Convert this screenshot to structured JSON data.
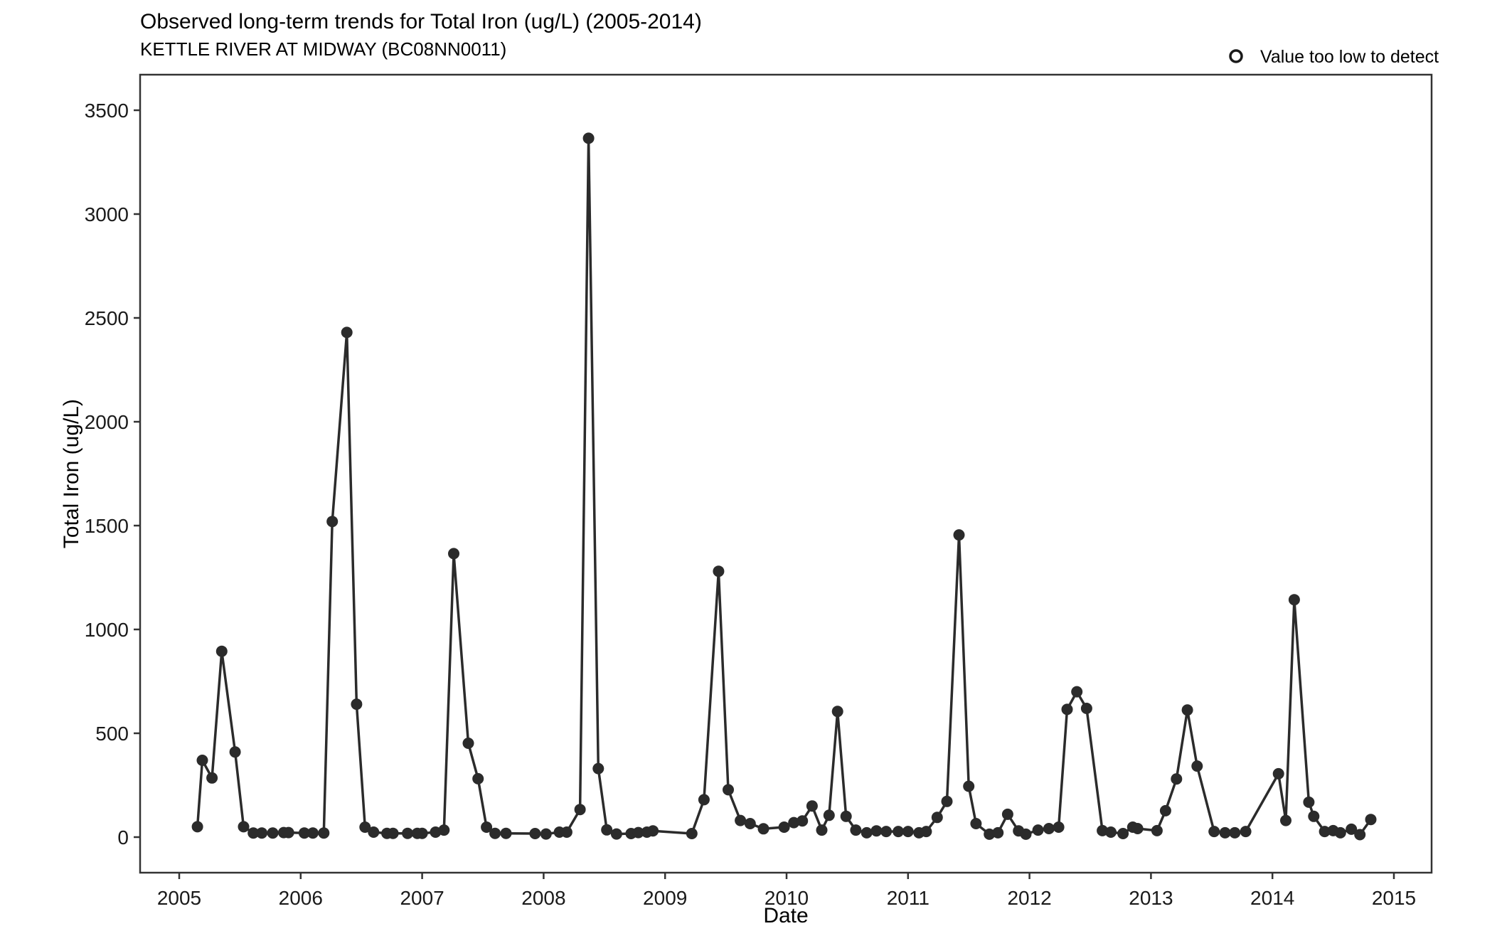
{
  "header": {
    "title": "Observed long-term trends for Total Iron (ug/L) (2005-2014)",
    "subtitle": "KETTLE RIVER AT MIDWAY (BC08NN0011)"
  },
  "legend": {
    "label": "Value too low to detect",
    "marker": "open-circle"
  },
  "axes": {
    "x_label": "Date",
    "y_label": "Total Iron (ug/L)"
  },
  "colors": {
    "series": "#2b2b2b",
    "text": "#000000",
    "axis": "#333333",
    "background": "#ffffff"
  },
  "chart_data": {
    "type": "line",
    "title": "Observed long-term trends for Total Iron (ug/L) (2005-2014)",
    "subtitle": "KETTLE RIVER AT MIDWAY (BC08NN0011)",
    "xlabel": "Date",
    "ylabel": "Total Iron (ug/L)",
    "series_name": "Total Iron (ug/L)",
    "x_ticks": [
      2005,
      2006,
      2007,
      2008,
      2009,
      2010,
      2011,
      2012,
      2013,
      2014,
      2015
    ],
    "y_ticks": [
      0,
      500,
      1000,
      1500,
      2000,
      2500,
      3000,
      3500
    ],
    "xlim": [
      2004.68,
      2015.31
    ],
    "ylim": [
      -170,
      3670
    ],
    "grid": false,
    "legend_position": "top-right",
    "legend_entries": [
      {
        "label": "Value too low to detect",
        "marker": "open-circle"
      }
    ],
    "points": [
      [
        2005.15,
        50
      ],
      [
        2005.19,
        370
      ],
      [
        2005.27,
        285
      ],
      [
        2005.35,
        895
      ],
      [
        2005.46,
        410
      ],
      [
        2005.53,
        50
      ],
      [
        2005.61,
        20
      ],
      [
        2005.68,
        20
      ],
      [
        2005.77,
        20
      ],
      [
        2005.86,
        22
      ],
      [
        2005.9,
        22
      ],
      [
        2006.03,
        20
      ],
      [
        2006.1,
        20
      ],
      [
        2006.19,
        20
      ],
      [
        2006.26,
        1520
      ],
      [
        2006.38,
        2430
      ],
      [
        2006.46,
        640
      ],
      [
        2006.53,
        48
      ],
      [
        2006.6,
        24
      ],
      [
        2006.71,
        18
      ],
      [
        2006.76,
        18
      ],
      [
        2006.88,
        18
      ],
      [
        2006.96,
        18
      ],
      [
        2007.0,
        18
      ],
      [
        2007.11,
        24
      ],
      [
        2007.18,
        34
      ],
      [
        2007.26,
        1365
      ],
      [
        2007.38,
        452
      ],
      [
        2007.46,
        281
      ],
      [
        2007.53,
        48
      ],
      [
        2007.6,
        18
      ],
      [
        2007.69,
        18
      ],
      [
        2007.93,
        17
      ],
      [
        2008.02,
        15
      ],
      [
        2008.13,
        24
      ],
      [
        2008.19,
        24
      ],
      [
        2008.3,
        133
      ],
      [
        2008.37,
        3365
      ],
      [
        2008.45,
        330
      ],
      [
        2008.52,
        35
      ],
      [
        2008.6,
        15
      ],
      [
        2008.72,
        17
      ],
      [
        2008.78,
        22
      ],
      [
        2008.85,
        24
      ],
      [
        2008.9,
        30
      ],
      [
        2009.22,
        17
      ],
      [
        2009.32,
        180
      ],
      [
        2009.44,
        1280
      ],
      [
        2009.52,
        228
      ],
      [
        2009.62,
        80
      ],
      [
        2009.7,
        65
      ],
      [
        2009.81,
        40
      ],
      [
        2009.98,
        48
      ],
      [
        2010.06,
        70
      ],
      [
        2010.13,
        78
      ],
      [
        2010.21,
        150
      ],
      [
        2010.29,
        34
      ],
      [
        2010.35,
        105
      ],
      [
        2010.42,
        605
      ],
      [
        2010.49,
        100
      ],
      [
        2010.57,
        34
      ],
      [
        2010.66,
        21
      ],
      [
        2010.74,
        30
      ],
      [
        2010.82,
        27
      ],
      [
        2010.92,
        27
      ],
      [
        2011.0,
        27
      ],
      [
        2011.09,
        21
      ],
      [
        2011.15,
        27
      ],
      [
        2011.24,
        95
      ],
      [
        2011.32,
        172
      ],
      [
        2011.42,
        1455
      ],
      [
        2011.5,
        245
      ],
      [
        2011.56,
        65
      ],
      [
        2011.67,
        14
      ],
      [
        2011.74,
        21
      ],
      [
        2011.82,
        110
      ],
      [
        2011.91,
        30
      ],
      [
        2011.97,
        14
      ],
      [
        2012.07,
        34
      ],
      [
        2012.16,
        41
      ],
      [
        2012.24,
        48
      ],
      [
        2012.31,
        615
      ],
      [
        2012.39,
        700
      ],
      [
        2012.47,
        620
      ],
      [
        2012.6,
        31
      ],
      [
        2012.67,
        24
      ],
      [
        2012.77,
        17
      ],
      [
        2012.85,
        48
      ],
      [
        2012.89,
        41
      ],
      [
        2013.05,
        31
      ],
      [
        2013.12,
        127
      ],
      [
        2013.21,
        280
      ],
      [
        2013.3,
        612
      ],
      [
        2013.38,
        342
      ],
      [
        2013.52,
        27
      ],
      [
        2013.61,
        21
      ],
      [
        2013.69,
        21
      ],
      [
        2013.78,
        27
      ],
      [
        2014.05,
        305
      ],
      [
        2014.11,
        80
      ],
      [
        2014.18,
        1143
      ],
      [
        2014.3,
        168
      ],
      [
        2014.34,
        100
      ],
      [
        2014.43,
        27
      ],
      [
        2014.5,
        31
      ],
      [
        2014.56,
        21
      ],
      [
        2014.65,
        38
      ],
      [
        2014.72,
        12
      ],
      [
        2014.81,
        85
      ]
    ]
  }
}
